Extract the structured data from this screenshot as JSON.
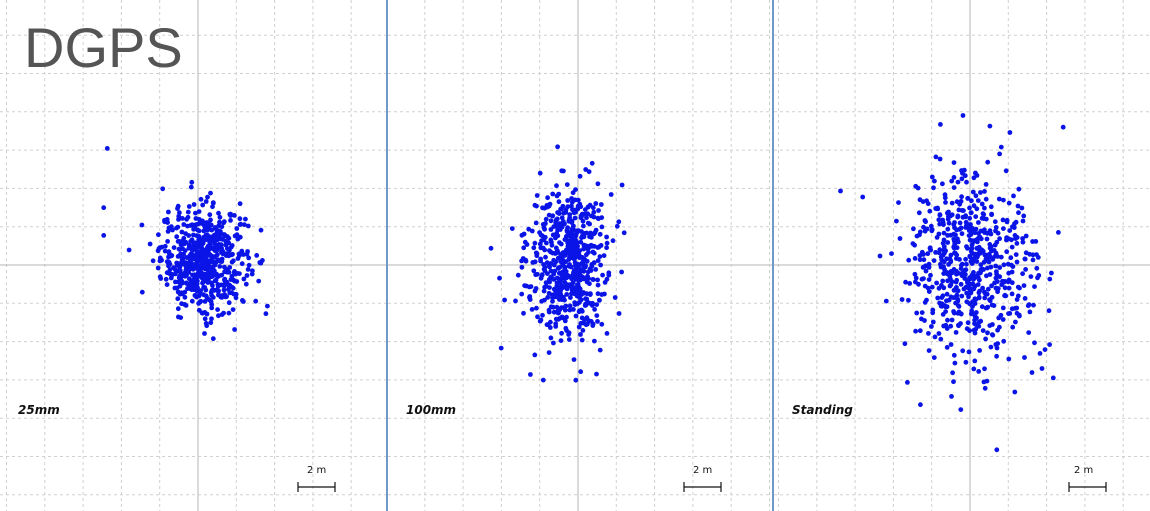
{
  "title": "DGPS",
  "chart_data": [
    {
      "type": "scatter",
      "label": "25mm",
      "scale_bar": "2 m",
      "grid": true,
      "units": "m",
      "center": [
        0,
        0
      ],
      "spread_m": {
        "sx": 1.15,
        "sy": 1.4
      },
      "mean_offset_m": {
        "x": 0.3,
        "y": 0.3
      },
      "point_count": 620,
      "outliers": [
        [
          -4.9,
          6.3
        ],
        [
          -5.1,
          3.1
        ],
        [
          -5.1,
          1.6
        ]
      ]
    },
    {
      "type": "scatter",
      "label": "100mm",
      "scale_bar": "2 m",
      "grid": true,
      "units": "m",
      "center": [
        0,
        0
      ],
      "spread_m": {
        "sx": 1.1,
        "sy": 2.0
      },
      "mean_offset_m": {
        "x": -0.6,
        "y": 0.1
      },
      "point_count": 620,
      "outliers": [
        [
          -4.7,
          0.9
        ],
        [
          1.0,
          -5.9
        ],
        [
          1.2,
          -4.6
        ]
      ]
    },
    {
      "type": "scatter",
      "label": "Standing",
      "scale_bar": "2 m",
      "grid": true,
      "units": "m",
      "center": [
        0,
        0
      ],
      "spread_m": {
        "sx": 2.0,
        "sy": 2.8
      },
      "mean_offset_m": {
        "x": -0.3,
        "y": 0.4
      },
      "point_count": 640,
      "outliers": [
        [
          -7.0,
          4.0
        ],
        [
          -1.6,
          7.6
        ],
        [
          -1.0,
          -7.1
        ],
        [
          4.5,
          -6.1
        ],
        [
          4.3,
          -4.3
        ]
      ]
    }
  ]
}
